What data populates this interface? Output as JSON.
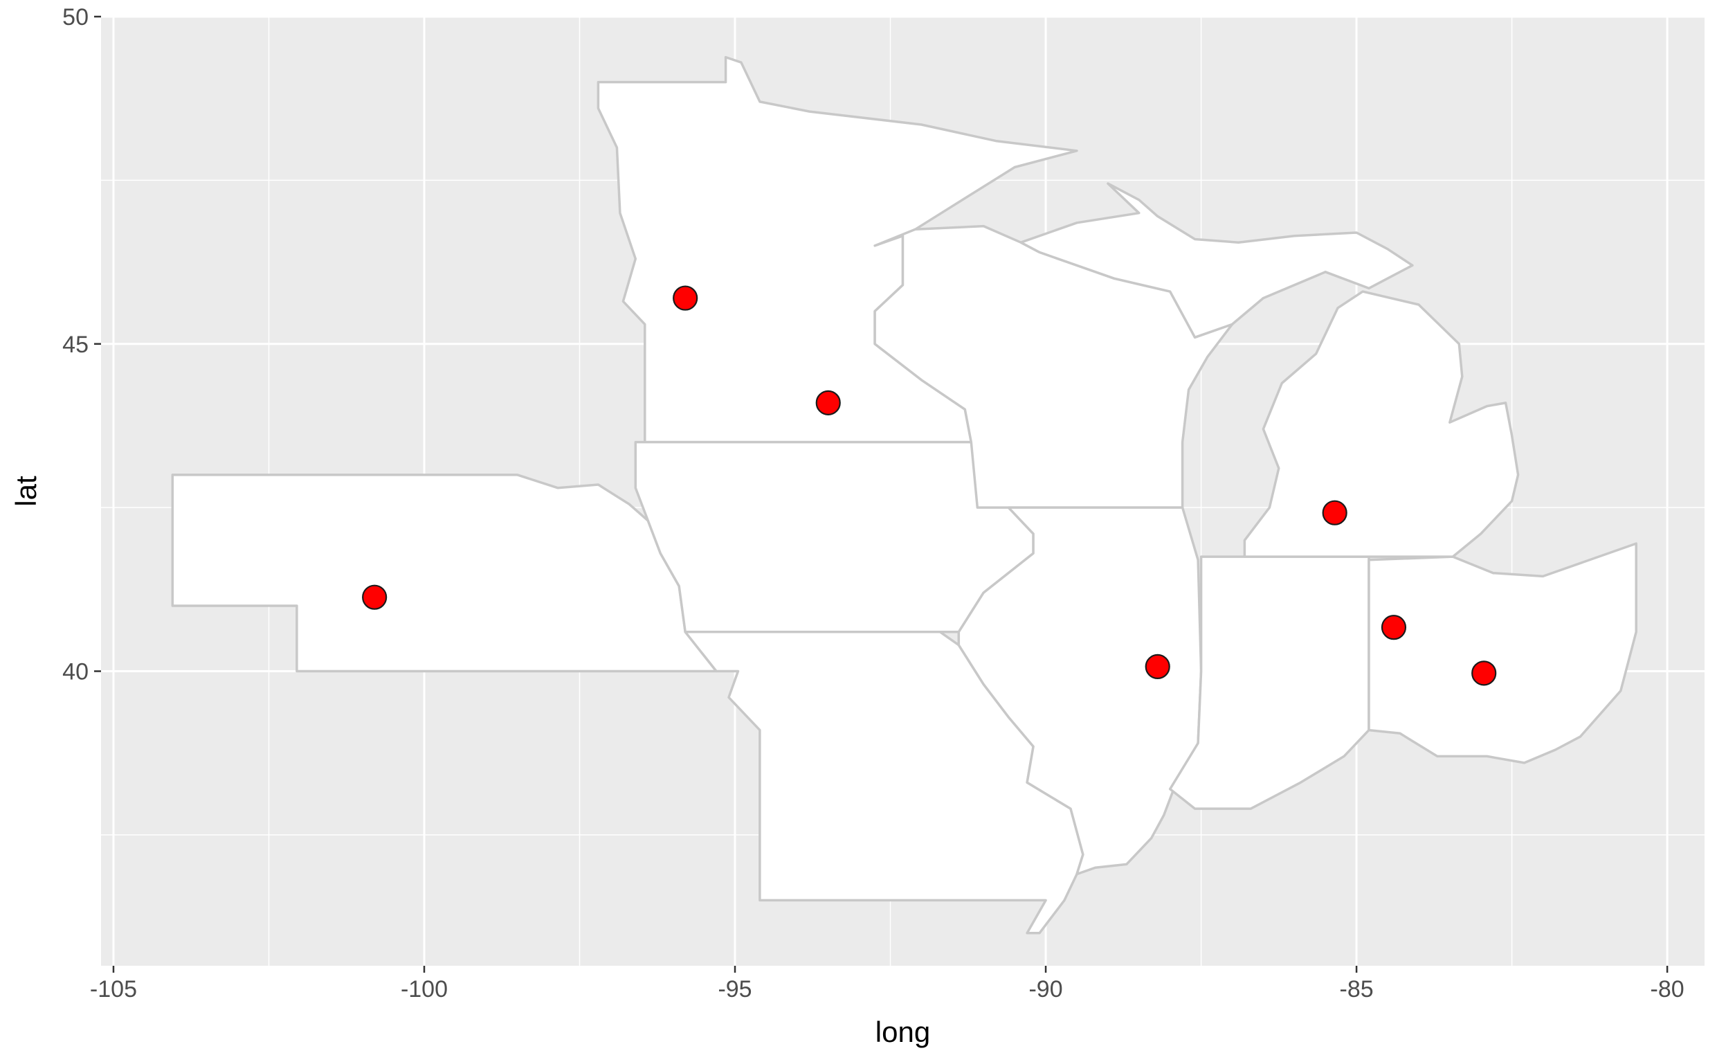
{
  "chart_data": {
    "type": "scatter",
    "xlabel": "long",
    "ylabel": "lat",
    "xlim": [
      -105.2,
      -79.4
    ],
    "ylim": [
      35.5,
      50
    ],
    "x_ticks": [
      -105,
      -100,
      -95,
      -90,
      -85,
      -80
    ],
    "x_tick_labels": [
      "-105",
      "-100",
      "-95",
      "-90",
      "-85",
      "-80"
    ],
    "y_ticks": [
      40,
      45,
      50
    ],
    "y_tick_labels": [
      "40",
      "45",
      "50"
    ],
    "grid": true,
    "background_color": "#ebebeb",
    "grid_color": "#ffffff",
    "state_fill": "#ffffff",
    "state_border": "#c8c8c8",
    "point_fill": "#ff0000",
    "point_stroke": "#1a1a1a",
    "points": [
      {
        "x": -100.8,
        "y": 41.13
      },
      {
        "x": -95.8,
        "y": 45.7
      },
      {
        "x": -93.5,
        "y": 44.1
      },
      {
        "x": -88.2,
        "y": 40.07
      },
      {
        "x": -85.35,
        "y": 42.42
      },
      {
        "x": -84.4,
        "y": 40.67
      },
      {
        "x": -82.95,
        "y": 39.97
      }
    ],
    "states": [
      {
        "name": "Nebraska",
        "path": [
          [
            -104.05,
            43.0
          ],
          [
            -98.5,
            43.0
          ],
          [
            -97.85,
            42.8
          ],
          [
            -97.2,
            42.85
          ],
          [
            -96.7,
            42.55
          ],
          [
            -96.4,
            42.3
          ],
          [
            -96.2,
            41.8
          ],
          [
            -95.9,
            41.3
          ],
          [
            -95.8,
            40.6
          ],
          [
            -95.3,
            40.0
          ],
          [
            -102.05,
            40.0
          ],
          [
            -102.05,
            41.0
          ],
          [
            -104.05,
            41.0
          ]
        ]
      },
      {
        "name": "Minnesota",
        "path": [
          [
            -96.4,
            49.0
          ],
          [
            -95.15,
            49.0
          ],
          [
            -95.15,
            49.38
          ],
          [
            -94.9,
            49.3
          ],
          [
            -94.6,
            48.7
          ],
          [
            -93.8,
            48.55
          ],
          [
            -92.0,
            48.35
          ],
          [
            -90.8,
            48.1
          ],
          [
            -89.5,
            47.95
          ],
          [
            -90.5,
            47.7
          ],
          [
            -92.1,
            46.75
          ],
          [
            -92.3,
            46.65
          ],
          [
            -92.3,
            45.9
          ],
          [
            -92.75,
            45.5
          ],
          [
            -92.75,
            45.0
          ],
          [
            -92.0,
            44.45
          ],
          [
            -91.3,
            44.0
          ],
          [
            -91.2,
            43.5
          ],
          [
            -96.45,
            43.5
          ],
          [
            -96.45,
            45.3
          ],
          [
            -96.8,
            45.65
          ],
          [
            -96.6,
            46.3
          ],
          [
            -96.85,
            47.0
          ],
          [
            -96.9,
            48.0
          ],
          [
            -97.2,
            48.6
          ],
          [
            -97.2,
            49.0
          ]
        ]
      },
      {
        "name": "Iowa",
        "path": [
          [
            -96.6,
            43.5
          ],
          [
            -91.2,
            43.5
          ],
          [
            -91.1,
            43.0
          ],
          [
            -90.6,
            42.5
          ],
          [
            -90.2,
            42.1
          ],
          [
            -90.2,
            41.8
          ],
          [
            -91.0,
            41.2
          ],
          [
            -91.4,
            40.6
          ],
          [
            -95.8,
            40.6
          ],
          [
            -95.9,
            41.3
          ],
          [
            -96.2,
            41.8
          ],
          [
            -96.4,
            42.3
          ],
          [
            -96.6,
            42.8
          ]
        ]
      },
      {
        "name": "Missouri",
        "path": [
          [
            -95.8,
            40.6
          ],
          [
            -91.7,
            40.6
          ],
          [
            -91.4,
            40.4
          ],
          [
            -91.0,
            39.8
          ],
          [
            -90.6,
            39.3
          ],
          [
            -90.2,
            38.85
          ],
          [
            -90.3,
            38.3
          ],
          [
            -89.6,
            37.9
          ],
          [
            -89.4,
            37.2
          ],
          [
            -89.5,
            36.9
          ],
          [
            -89.7,
            36.5
          ],
          [
            -90.1,
            36.0
          ],
          [
            -90.3,
            36.0
          ],
          [
            -90.0,
            36.5
          ],
          [
            -94.6,
            36.5
          ],
          [
            -94.6,
            39.1
          ],
          [
            -95.1,
            39.6
          ],
          [
            -94.95,
            40.0
          ],
          [
            -95.3,
            40.0
          ]
        ]
      },
      {
        "name": "Wisconsin",
        "path": [
          [
            -92.75,
            46.5
          ],
          [
            -92.3,
            46.65
          ],
          [
            -92.3,
            45.9
          ],
          [
            -92.75,
            45.5
          ],
          [
            -92.75,
            45.0
          ],
          [
            -92.0,
            44.45
          ],
          [
            -91.3,
            44.0
          ],
          [
            -91.2,
            43.5
          ],
          [
            -91.1,
            42.5
          ],
          [
            -87.8,
            42.5
          ],
          [
            -87.8,
            43.5
          ],
          [
            -87.7,
            44.3
          ],
          [
            -87.4,
            44.8
          ],
          [
            -87.0,
            45.3
          ],
          [
            -87.6,
            45.1
          ],
          [
            -88.0,
            45.8
          ],
          [
            -88.9,
            46.0
          ],
          [
            -90.1,
            46.4
          ],
          [
            -90.4,
            46.55
          ],
          [
            -91.0,
            46.8
          ],
          [
            -92.1,
            46.75
          ]
        ]
      },
      {
        "name": "Illinois",
        "path": [
          [
            -90.6,
            42.5
          ],
          [
            -87.8,
            42.5
          ],
          [
            -87.55,
            41.7
          ],
          [
            -87.5,
            40.0
          ],
          [
            -87.55,
            38.9
          ],
          [
            -87.9,
            38.3
          ],
          [
            -88.1,
            37.8
          ],
          [
            -88.3,
            37.45
          ],
          [
            -88.7,
            37.05
          ],
          [
            -89.2,
            37.0
          ],
          [
            -89.5,
            36.9
          ],
          [
            -89.4,
            37.2
          ],
          [
            -89.6,
            37.9
          ],
          [
            -90.3,
            38.3
          ],
          [
            -90.2,
            38.85
          ],
          [
            -90.6,
            39.3
          ],
          [
            -91.0,
            39.8
          ],
          [
            -91.4,
            40.4
          ],
          [
            -91.4,
            40.6
          ],
          [
            -91.0,
            41.2
          ],
          [
            -90.2,
            41.8
          ],
          [
            -90.2,
            42.1
          ]
        ]
      },
      {
        "name": "Indiana",
        "path": [
          [
            -87.5,
            41.75
          ],
          [
            -84.8,
            41.75
          ],
          [
            -84.8,
            39.1
          ],
          [
            -85.2,
            38.7
          ],
          [
            -85.9,
            38.3
          ],
          [
            -86.7,
            37.9
          ],
          [
            -87.6,
            37.9
          ],
          [
            -88.0,
            38.2
          ],
          [
            -87.55,
            38.9
          ],
          [
            -87.5,
            40.0
          ],
          [
            -87.5,
            41.6
          ]
        ]
      },
      {
        "name": "Ohio",
        "path": [
          [
            -84.8,
            41.7
          ],
          [
            -83.45,
            41.75
          ],
          [
            -82.8,
            41.5
          ],
          [
            -82.0,
            41.45
          ],
          [
            -80.5,
            41.95
          ],
          [
            -80.5,
            40.6
          ],
          [
            -80.75,
            39.7
          ],
          [
            -81.4,
            39.0
          ],
          [
            -81.8,
            38.8
          ],
          [
            -82.3,
            38.6
          ],
          [
            -82.9,
            38.7
          ],
          [
            -83.7,
            38.7
          ],
          [
            -84.3,
            39.05
          ],
          [
            -84.8,
            39.1
          ]
        ]
      },
      {
        "name": "Michigan-Lower",
        "path": [
          [
            -86.8,
            41.75
          ],
          [
            -84.8,
            41.75
          ],
          [
            -83.45,
            41.75
          ],
          [
            -83.0,
            42.1
          ],
          [
            -82.5,
            42.6
          ],
          [
            -82.4,
            43.0
          ],
          [
            -82.5,
            43.6
          ],
          [
            -82.6,
            44.1
          ],
          [
            -82.9,
            44.05
          ],
          [
            -83.5,
            43.8
          ],
          [
            -83.3,
            44.5
          ],
          [
            -83.35,
            45.0
          ],
          [
            -84.0,
            45.6
          ],
          [
            -84.9,
            45.8
          ],
          [
            -85.3,
            45.55
          ],
          [
            -85.65,
            44.85
          ],
          [
            -86.2,
            44.4
          ],
          [
            -86.5,
            43.7
          ],
          [
            -86.25,
            43.1
          ],
          [
            -86.4,
            42.5
          ],
          [
            -86.8,
            42.0
          ]
        ]
      },
      {
        "name": "Michigan-Upper",
        "path": [
          [
            -90.4,
            46.55
          ],
          [
            -90.1,
            46.4
          ],
          [
            -88.9,
            46.0
          ],
          [
            -88.0,
            45.8
          ],
          [
            -87.6,
            45.1
          ],
          [
            -87.0,
            45.3
          ],
          [
            -86.5,
            45.7
          ],
          [
            -85.5,
            46.1
          ],
          [
            -84.8,
            45.85
          ],
          [
            -84.5,
            46.0
          ],
          [
            -84.1,
            46.2
          ],
          [
            -84.5,
            46.45
          ],
          [
            -85.0,
            46.7
          ],
          [
            -86.0,
            46.65
          ],
          [
            -86.9,
            46.55
          ],
          [
            -87.6,
            46.6
          ],
          [
            -88.2,
            46.95
          ],
          [
            -88.5,
            47.2
          ],
          [
            -89.0,
            47.45
          ],
          [
            -88.5,
            47.0
          ],
          [
            -89.5,
            46.85
          ]
        ]
      }
    ]
  }
}
